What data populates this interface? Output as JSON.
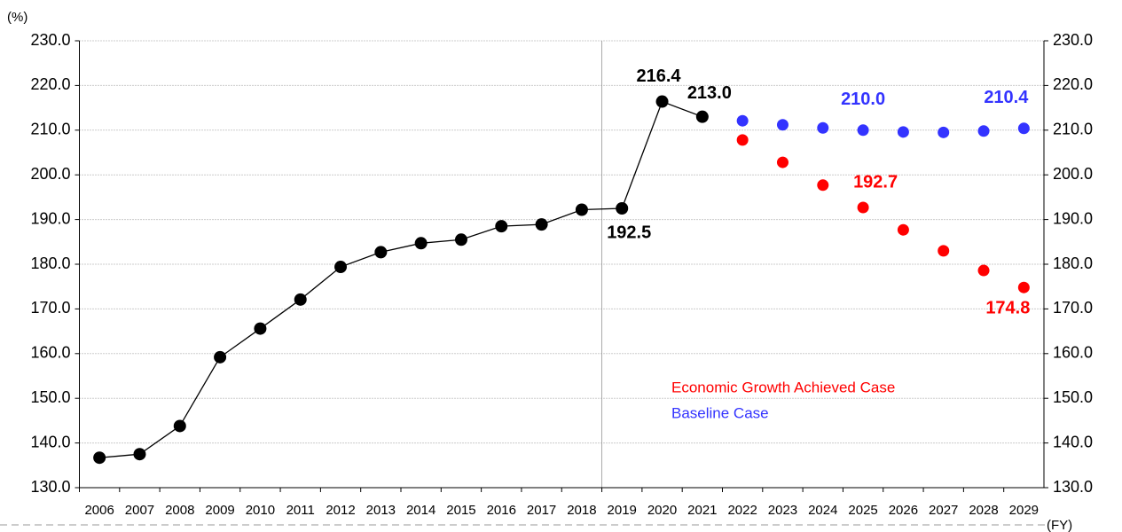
{
  "chart_data": {
    "type": "line",
    "y_label": "(%)",
    "x_label": "(FY)",
    "categories": [
      "2006",
      "2007",
      "2008",
      "2009",
      "2010",
      "2011",
      "2012",
      "2013",
      "2014",
      "2015",
      "2016",
      "2017",
      "2018",
      "2019",
      "2020",
      "2021",
      "2022",
      "2023",
      "2024",
      "2025",
      "2026",
      "2027",
      "2028",
      "2029"
    ],
    "ylim": [
      130,
      230
    ],
    "yticks": [
      {
        "value": 130,
        "label": "130.0"
      },
      {
        "value": 140,
        "label": "140.0"
      },
      {
        "value": 150,
        "label": "150.0"
      },
      {
        "value": 160,
        "label": "160.0"
      },
      {
        "value": 170,
        "label": "170.0"
      },
      {
        "value": 180,
        "label": "180.0"
      },
      {
        "value": 190,
        "label": "190.0"
      },
      {
        "value": 200,
        "label": "200.0"
      },
      {
        "value": 210,
        "label": "210.0"
      },
      {
        "value": 220,
        "label": "220.0"
      },
      {
        "value": 230,
        "label": "230.0"
      }
    ],
    "grid": true,
    "series": [
      {
        "color": "#000000",
        "line": true,
        "values": [
          136.7,
          137.5,
          143.8,
          159.2,
          165.6,
          172.1,
          179.4,
          182.7,
          184.7,
          185.5,
          188.5,
          188.9,
          192.2,
          192.5,
          216.4,
          213.0,
          null,
          null,
          null,
          null,
          null,
          null,
          null,
          null
        ],
        "value_labels": [
          null,
          null,
          null,
          null,
          null,
          null,
          null,
          null,
          null,
          null,
          null,
          null,
          null,
          "192.5",
          "216.4",
          "213.0",
          null,
          null,
          null,
          null,
          null,
          null,
          null,
          null
        ]
      },
      {
        "name": "Economic Growth Achieved Case",
        "color": "#ff0000",
        "line": false,
        "values": [
          null,
          null,
          null,
          null,
          null,
          null,
          null,
          null,
          null,
          null,
          null,
          null,
          null,
          null,
          null,
          null,
          207.8,
          202.8,
          197.7,
          192.7,
          187.7,
          183.0,
          178.6,
          174.8
        ],
        "value_labels": [
          null,
          null,
          null,
          null,
          null,
          null,
          null,
          null,
          null,
          null,
          null,
          null,
          null,
          null,
          null,
          null,
          null,
          null,
          null,
          "192.7",
          null,
          null,
          null,
          "174.8"
        ]
      },
      {
        "name": "Baseline Case",
        "color": "#3333ff",
        "line": false,
        "values": [
          null,
          null,
          null,
          null,
          null,
          null,
          null,
          null,
          null,
          null,
          null,
          null,
          null,
          null,
          null,
          null,
          212.1,
          211.2,
          210.5,
          210.0,
          209.6,
          209.5,
          209.8,
          210.4
        ],
        "value_labels": [
          null,
          null,
          null,
          null,
          null,
          null,
          null,
          null,
          null,
          null,
          null,
          null,
          null,
          null,
          null,
          null,
          null,
          null,
          null,
          "210.0",
          null,
          null,
          null,
          "210.4"
        ]
      }
    ]
  }
}
